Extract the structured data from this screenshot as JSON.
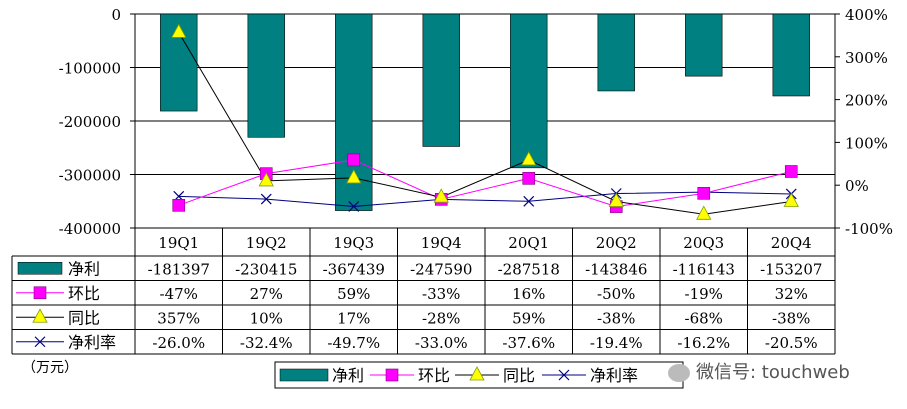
{
  "chart_data": {
    "type": "bar",
    "categories": [
      "19Q1",
      "19Q2",
      "19Q3",
      "19Q4",
      "20Q1",
      "20Q2",
      "20Q3",
      "20Q4"
    ],
    "series": [
      {
        "name": "净利",
        "kind": "bar",
        "axis": "left",
        "color": "#008080",
        "values": [
          -181397,
          -230415,
          -367439,
          -247590,
          -287518,
          -143846,
          -116143,
          -153207
        ],
        "labels": [
          "-181397",
          "-230415",
          "-367439",
          "-247590",
          "-287518",
          "-143846",
          "-116143",
          "-153207"
        ]
      },
      {
        "name": "环比",
        "kind": "line",
        "axis": "right",
        "color": "#ff00ff",
        "marker": "square",
        "values": [
          -47,
          27,
          59,
          -33,
          16,
          -50,
          -19,
          32
        ],
        "labels": [
          "-47%",
          "27%",
          "59%",
          "-33%",
          "16%",
          "-50%",
          "-19%",
          "32%"
        ]
      },
      {
        "name": "同比",
        "kind": "line",
        "axis": "right",
        "color": "#000000",
        "marker": "triangle",
        "values": [
          357,
          10,
          17,
          -28,
          59,
          -38,
          -68,
          -38
        ],
        "labels": [
          "357%",
          "10%",
          "17%",
          "-28%",
          "59%",
          "-38%",
          "-68%",
          "-38%"
        ]
      },
      {
        "name": "净利率",
        "kind": "line",
        "axis": "right",
        "color": "#000080",
        "marker": "x",
        "values": [
          -26.0,
          -32.4,
          -49.7,
          -33.0,
          -37.6,
          -19.4,
          -16.2,
          -20.5
        ],
        "labels": [
          "-26.0%",
          "-32.4%",
          "-49.7%",
          "-33.0%",
          "-37.6%",
          "-19.4%",
          "-16.2%",
          "-20.5%"
        ]
      }
    ],
    "left_axis": {
      "ylim": [
        -400000,
        0
      ],
      "ticks": [
        "0",
        "-100000",
        "-200000",
        "-300000",
        "-400000"
      ],
      "tick_values": [
        0,
        -100000,
        -200000,
        -300000,
        -400000
      ]
    },
    "right_axis": {
      "ylim": [
        -100,
        400
      ],
      "ticks": [
        "400%",
        "300%",
        "200%",
        "100%",
        "0%",
        "-100%"
      ],
      "tick_values": [
        400,
        300,
        200,
        100,
        0,
        -100
      ]
    },
    "grid": true,
    "legend_position": "bottom",
    "data_table": true
  },
  "unit_label": "（万元）",
  "watermark": "微信号: touchweb"
}
